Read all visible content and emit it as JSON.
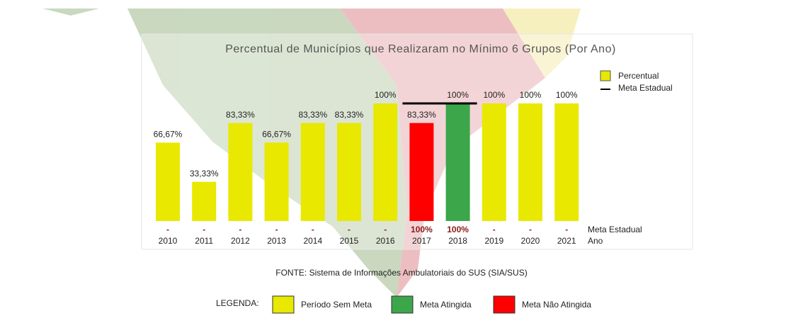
{
  "chart_data": {
    "type": "bar",
    "title": "Percentual de Municípios que Realizaram no Mínimo 6 Grupos (Por Ano)",
    "categories": [
      "2010",
      "2011",
      "2012",
      "2013",
      "2014",
      "2015",
      "2016",
      "2017",
      "2018",
      "2019",
      "2020",
      "2021"
    ],
    "x_label": "Ano",
    "ylim": [
      0,
      100
    ],
    "legend": "top-right",
    "series": [
      {
        "name": "Percentual",
        "color": "#e8e800",
        "values": [
          66.67,
          33.33,
          83.33,
          66.67,
          83.33,
          83.33,
          100,
          83.33,
          100,
          100,
          100,
          100
        ],
        "value_labels": [
          "66,67%",
          "33,33%",
          "83,33%",
          "66,67%",
          "83,33%",
          "83,33%",
          "100%",
          "83,33%",
          "100%",
          "100%",
          "100%",
          "100%"
        ],
        "colors": [
          "#e8e800",
          "#e8e800",
          "#e8e800",
          "#e8e800",
          "#e8e800",
          "#e8e800",
          "#e8e800",
          "#ff0000",
          "#3ca64a",
          "#e8e800",
          "#e8e800",
          "#e8e800"
        ]
      },
      {
        "name": "Meta Estadual",
        "color": "#000000",
        "values": [
          null,
          null,
          null,
          null,
          null,
          null,
          null,
          100,
          100,
          null,
          null,
          null
        ],
        "value_labels": [
          "-",
          "-",
          "-",
          "-",
          "-",
          "-",
          "-",
          "100%",
          "100%",
          "-",
          "-",
          "-"
        ]
      }
    ],
    "source": "FONTE: Sistema de Informações Ambulatoriais do SUS (SIA/SUS)",
    "status_legend": {
      "title": "LEGENDA:",
      "items": [
        {
          "label": "Período Sem Meta",
          "color": "#e8e800"
        },
        {
          "label": "Meta Atingida",
          "color": "#3ca64a"
        },
        {
          "label": "Meta Não Atingida",
          "color": "#ff0000"
        }
      ]
    }
  }
}
